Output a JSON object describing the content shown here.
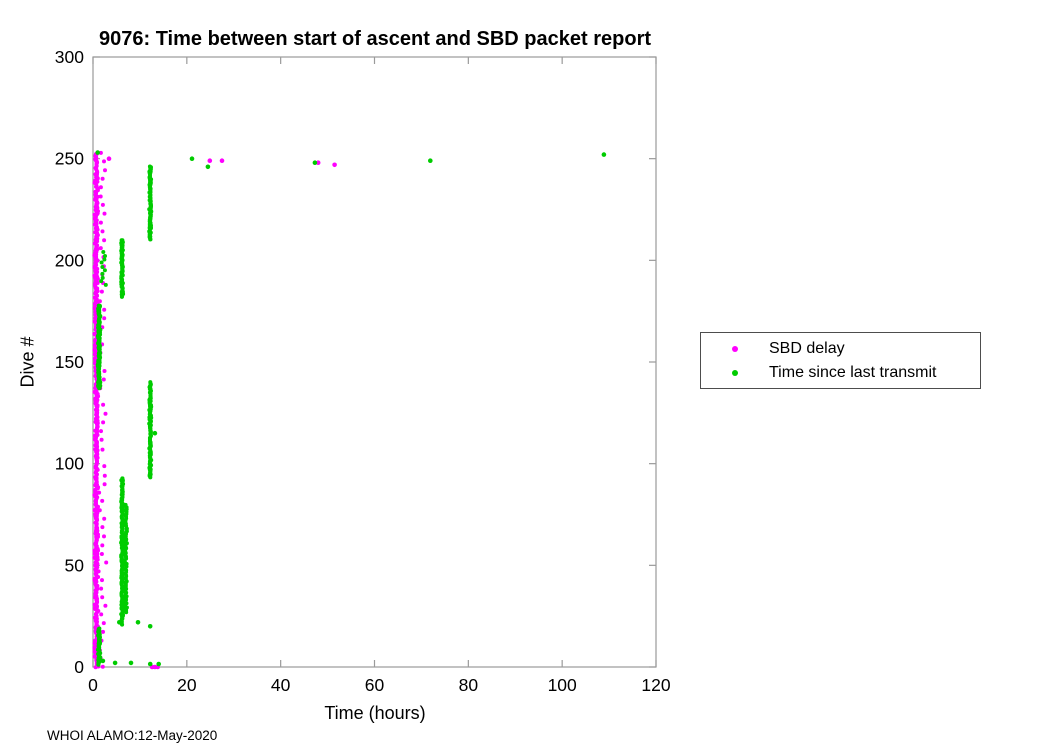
{
  "figure": {
    "footer": "WHOI ALAMO:12-May-2020"
  },
  "chart_data": {
    "type": "scatter",
    "title": "9076: Time between start of ascent and SBD packet report",
    "xlabel": "Time (hours)",
    "ylabel": "Dive #",
    "xlim": [
      0,
      120
    ],
    "ylim": [
      0,
      300
    ],
    "xticks": [
      0,
      20,
      40,
      60,
      80,
      100,
      120
    ],
    "yticks": [
      0,
      50,
      100,
      150,
      200,
      250,
      300
    ],
    "grid": false,
    "axis_color": "#9a9a9a",
    "tick_label_color": "#000000",
    "legend": {
      "position": "right-outside",
      "entries": [
        {
          "label": "SBD delay",
          "color": "#ff00ff"
        },
        {
          "label": "Time since last transmit",
          "color": "#00cc00"
        }
      ]
    },
    "series": [
      {
        "name": "SBD delay",
        "color": "#ff00ff",
        "marker": "dot",
        "marker_radius": 2,
        "clusters": [
          {
            "x": 0.7,
            "x_jitter": 0.45,
            "y_min": 0,
            "y_max": 253,
            "count": 520
          },
          {
            "x": 1.9,
            "x_jitter": 1.1,
            "y_min": 0,
            "y_max": 253,
            "count": 60
          }
        ],
        "points": [
          [
            3.4,
            250
          ],
          [
            24.9,
            249
          ],
          [
            27.5,
            249
          ],
          [
            48.0,
            248
          ],
          [
            51.5,
            247
          ],
          [
            12.6,
            0
          ],
          [
            13.2,
            0
          ],
          [
            13.8,
            0
          ]
        ]
      },
      {
        "name": "Time since last transmit",
        "color": "#00cc00",
        "marker": "dot",
        "marker_radius": 2,
        "clusters": [
          {
            "x": 1.3,
            "x_jitter": 0.3,
            "y_min": 137,
            "y_max": 178,
            "count": 130
          },
          {
            "x": 1.3,
            "x_jitter": 0.3,
            "y_min": 1,
            "y_max": 19,
            "count": 45
          },
          {
            "x": 6.2,
            "x_jitter": 0.25,
            "y_min": 21,
            "y_max": 93,
            "count": 150
          },
          {
            "x": 7.0,
            "x_jitter": 0.25,
            "y_min": 27,
            "y_max": 80,
            "count": 70
          },
          {
            "x": 6.2,
            "x_jitter": 0.25,
            "y_min": 182,
            "y_max": 210,
            "count": 70
          },
          {
            "x": 12.2,
            "x_jitter": 0.25,
            "y_min": 93,
            "y_max": 140,
            "count": 110
          },
          {
            "x": 12.2,
            "x_jitter": 0.25,
            "y_min": 210,
            "y_max": 246,
            "count": 90
          },
          {
            "x": 2.0,
            "x_jitter": 0.8,
            "y_min": 188,
            "y_max": 204,
            "count": 10
          }
        ],
        "points": [
          [
            21.1,
            250
          ],
          [
            24.5,
            246
          ],
          [
            47.3,
            248
          ],
          [
            71.9,
            249
          ],
          [
            108.9,
            252
          ],
          [
            12.2,
            20
          ],
          [
            9.6,
            22
          ],
          [
            5.6,
            22
          ],
          [
            13.2,
            115
          ],
          [
            2.1,
            3
          ],
          [
            4.7,
            2
          ],
          [
            8.1,
            2
          ],
          [
            12.2,
            1.5
          ],
          [
            14.0,
            1.5
          ],
          [
            1.0,
            253
          ]
        ]
      }
    ]
  }
}
